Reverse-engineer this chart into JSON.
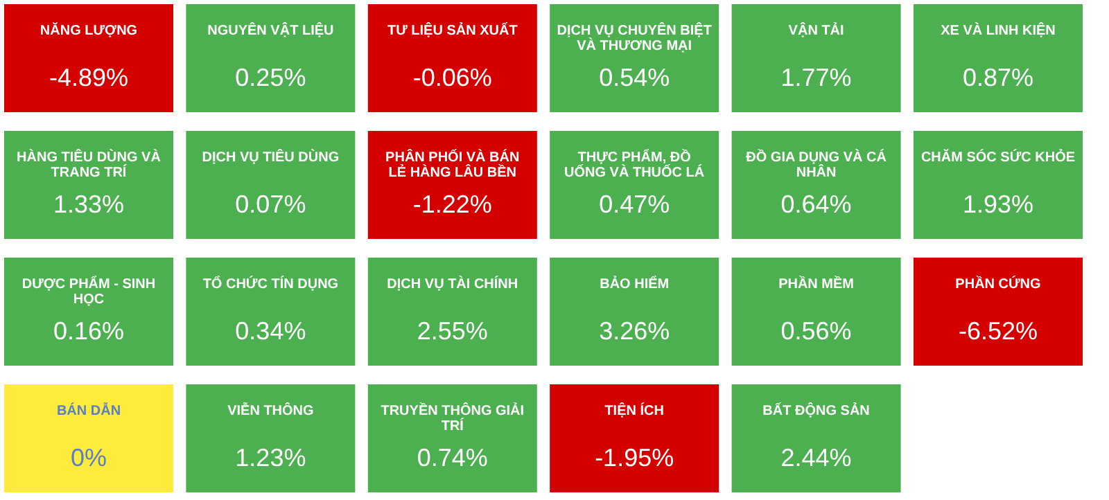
{
  "chart_data": {
    "type": "other",
    "categories": [
      "NĂNG LƯỢNG",
      "NGUYÊN VẬT LIỆU",
      "TƯ LIỆU SẢN XUẤT",
      "DỊCH VỤ CHUYÊN BIỆT VÀ THƯƠNG MẠI",
      "VẬN TẢI",
      "XE VÀ LINH KIỆN",
      "HÀNG TIÊU DÙNG VÀ TRANG TRÍ",
      "DỊCH VỤ TIÊU DÙNG",
      "PHÂN PHỐI VÀ BÁN LẺ HÀNG LÂU BỀN",
      "THỰC PHẨM, ĐỒ UỐNG VÀ THUỐC LÁ",
      "ĐỒ GIA DỤNG VÀ CÁ NHÂN",
      "CHĂM SÓC SỨC KHỎE",
      "DƯỢC PHẨM - SINH HỌC",
      "TỔ CHỨC TÍN DỤNG",
      "DỊCH VỤ TÀI CHÍNH",
      "BẢO HIỂM",
      "PHẦN MỀM",
      "PHẦN CỨNG",
      "BÁN DẪN",
      "VIỄN THÔNG",
      "TRUYỀN THÔNG GIẢI TRÍ",
      "TIỆN ÍCH",
      "BẤT ĐỘNG SẢN"
    ],
    "values": [
      -4.89,
      0.25,
      -0.06,
      0.54,
      1.77,
      0.87,
      1.33,
      0.07,
      -1.22,
      0.47,
      0.64,
      1.93,
      0.16,
      0.34,
      2.55,
      3.26,
      0.56,
      -6.52,
      0,
      1.23,
      0.74,
      -1.95,
      2.44
    ],
    "value_labels": [
      "-4.89%",
      "0.25%",
      "-0.06%",
      "0.54%",
      "1.77%",
      "0.87%",
      "1.33%",
      "0.07%",
      "-1.22%",
      "0.47%",
      "0.64%",
      "1.93%",
      "0.16%",
      "0.34%",
      "2.55%",
      "3.26%",
      "0.56%",
      "-6.52%",
      "0%",
      "1.23%",
      "0.74%",
      "-1.95%",
      "2.44%"
    ],
    "colors": [
      "#d40000",
      "#4caf50",
      "#d40000",
      "#4caf50",
      "#4caf50",
      "#4caf50",
      "#4caf50",
      "#4caf50",
      "#d40000",
      "#4caf50",
      "#4caf50",
      "#4caf50",
      "#4caf50",
      "#4caf50",
      "#4caf50",
      "#4caf50",
      "#4caf50",
      "#d40000",
      "#ffeb3b",
      "#4caf50",
      "#4caf50",
      "#d40000",
      "#4caf50"
    ]
  }
}
